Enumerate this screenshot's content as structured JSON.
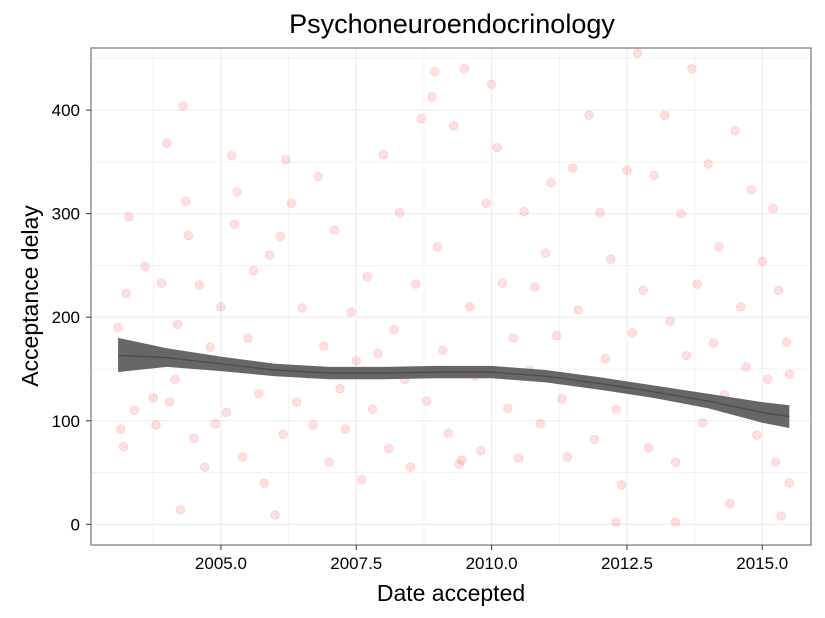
{
  "chart_data": {
    "type": "scatter",
    "title": "Psychoneuroendocrinology",
    "xlabel": "Date accepted",
    "ylabel": "Acceptance delay",
    "xlim": [
      2002.6,
      2015.9
    ],
    "ylim": [
      -20,
      460
    ],
    "x_ticks": [
      2005.0,
      2007.5,
      2010.0,
      2012.5,
      2015.0
    ],
    "x_tick_labels": [
      "2005.0",
      "2007.5",
      "2010.0",
      "2012.5",
      "2015.0"
    ],
    "y_ticks": [
      0,
      100,
      200,
      300,
      400
    ],
    "y_tick_labels": [
      "0",
      "100",
      "200",
      "300",
      "400"
    ],
    "grid": true,
    "point_color": "#ff0000",
    "point_alpha": 0.12,
    "smooth_color": "#5a5a5a",
    "points": [
      [
        2003.1,
        190
      ],
      [
        2003.15,
        92
      ],
      [
        2003.2,
        75
      ],
      [
        2003.25,
        223
      ],
      [
        2003.3,
        297
      ],
      [
        2003.4,
        110
      ],
      [
        2003.5,
        165
      ],
      [
        2003.6,
        249
      ],
      [
        2003.75,
        122
      ],
      [
        2003.8,
        96
      ],
      [
        2003.9,
        233
      ],
      [
        2004.0,
        368
      ],
      [
        2004.05,
        118
      ],
      [
        2004.15,
        140
      ],
      [
        2004.2,
        193
      ],
      [
        2004.25,
        14
      ],
      [
        2004.3,
        404
      ],
      [
        2004.35,
        312
      ],
      [
        2004.4,
        279
      ],
      [
        2004.5,
        83
      ],
      [
        2004.6,
        231
      ],
      [
        2004.7,
        55
      ],
      [
        2004.8,
        171
      ],
      [
        2004.9,
        97
      ],
      [
        2005.0,
        210
      ],
      [
        2005.1,
        108
      ],
      [
        2005.2,
        356
      ],
      [
        2005.25,
        290
      ],
      [
        2005.3,
        321
      ],
      [
        2005.4,
        65
      ],
      [
        2005.5,
        180
      ],
      [
        2005.6,
        245
      ],
      [
        2005.7,
        126
      ],
      [
        2005.8,
        40
      ],
      [
        2005.9,
        260
      ],
      [
        2006.0,
        9
      ],
      [
        2006.1,
        278
      ],
      [
        2006.15,
        87
      ],
      [
        2006.2,
        352
      ],
      [
        2006.3,
        310
      ],
      [
        2006.4,
        118
      ],
      [
        2006.5,
        209
      ],
      [
        2006.6,
        145
      ],
      [
        2006.7,
        96
      ],
      [
        2006.8,
        336
      ],
      [
        2006.9,
        172
      ],
      [
        2007.0,
        60
      ],
      [
        2007.1,
        284
      ],
      [
        2007.2,
        131
      ],
      [
        2007.3,
        92
      ],
      [
        2007.4,
        205
      ],
      [
        2007.5,
        158
      ],
      [
        2007.6,
        43
      ],
      [
        2007.7,
        239
      ],
      [
        2007.8,
        111
      ],
      [
        2007.9,
        165
      ],
      [
        2008.0,
        357
      ],
      [
        2008.1,
        73
      ],
      [
        2008.2,
        188
      ],
      [
        2008.3,
        301
      ],
      [
        2008.4,
        140
      ],
      [
        2008.5,
        55
      ],
      [
        2008.6,
        232
      ],
      [
        2008.7,
        392
      ],
      [
        2008.8,
        119
      ],
      [
        2008.9,
        413
      ],
      [
        2008.95,
        437
      ],
      [
        2009.0,
        268
      ],
      [
        2009.1,
        168
      ],
      [
        2009.2,
        88
      ],
      [
        2009.3,
        385
      ],
      [
        2009.4,
        58
      ],
      [
        2009.45,
        62
      ],
      [
        2009.5,
        440
      ],
      [
        2009.6,
        210
      ],
      [
        2009.7,
        143
      ],
      [
        2009.8,
        71
      ],
      [
        2009.9,
        310
      ],
      [
        2010.0,
        425
      ],
      [
        2010.1,
        364
      ],
      [
        2010.2,
        233
      ],
      [
        2010.3,
        112
      ],
      [
        2010.4,
        180
      ],
      [
        2010.5,
        64
      ],
      [
        2010.6,
        302
      ],
      [
        2010.7,
        149
      ],
      [
        2010.8,
        229
      ],
      [
        2010.9,
        97
      ],
      [
        2011.0,
        262
      ],
      [
        2011.1,
        330
      ],
      [
        2011.2,
        182
      ],
      [
        2011.3,
        121
      ],
      [
        2011.4,
        65
      ],
      [
        2011.5,
        344
      ],
      [
        2011.6,
        207
      ],
      [
        2011.7,
        138
      ],
      [
        2011.8,
        395
      ],
      [
        2011.9,
        82
      ],
      [
        2012.0,
        301
      ],
      [
        2012.1,
        160
      ],
      [
        2012.2,
        256
      ],
      [
        2012.3,
        111
      ],
      [
        2012.4,
        38
      ],
      [
        2012.5,
        342
      ],
      [
        2012.6,
        185
      ],
      [
        2012.7,
        455
      ],
      [
        2012.8,
        226
      ],
      [
        2012.9,
        74
      ],
      [
        2013.0,
        337
      ],
      [
        2013.1,
        128
      ],
      [
        2013.2,
        395
      ],
      [
        2013.3,
        196
      ],
      [
        2013.4,
        60
      ],
      [
        2013.5,
        300
      ],
      [
        2013.6,
        163
      ],
      [
        2013.7,
        440
      ],
      [
        2013.8,
        232
      ],
      [
        2013.9,
        98
      ],
      [
        2014.0,
        348
      ],
      [
        2014.1,
        175
      ],
      [
        2014.2,
        268
      ],
      [
        2014.3,
        125
      ],
      [
        2014.4,
        20
      ],
      [
        2014.5,
        380
      ],
      [
        2014.6,
        210
      ],
      [
        2014.7,
        152
      ],
      [
        2014.8,
        323
      ],
      [
        2014.9,
        86
      ],
      [
        2015.0,
        254
      ],
      [
        2015.1,
        140
      ],
      [
        2015.2,
        305
      ],
      [
        2015.25,
        60
      ],
      [
        2015.3,
        226
      ],
      [
        2015.35,
        8
      ],
      [
        2015.4,
        108
      ],
      [
        2015.45,
        176
      ],
      [
        2015.5,
        145
      ],
      [
        2015.5,
        40
      ],
      [
        2012.3,
        2
      ],
      [
        2013.4,
        2
      ]
    ],
    "smooth_line": [
      {
        "x": 2003.1,
        "y": 163,
        "lower": 147,
        "upper": 180
      },
      {
        "x": 2004.0,
        "y": 161,
        "lower": 152,
        "upper": 170
      },
      {
        "x": 2005.0,
        "y": 155,
        "lower": 148,
        "upper": 162
      },
      {
        "x": 2006.0,
        "y": 149,
        "lower": 143,
        "upper": 155
      },
      {
        "x": 2007.0,
        "y": 146,
        "lower": 140,
        "upper": 152
      },
      {
        "x": 2008.0,
        "y": 146,
        "lower": 140,
        "upper": 152
      },
      {
        "x": 2009.0,
        "y": 147,
        "lower": 141,
        "upper": 153
      },
      {
        "x": 2010.0,
        "y": 147,
        "lower": 141,
        "upper": 153
      },
      {
        "x": 2011.0,
        "y": 143,
        "lower": 137,
        "upper": 149
      },
      {
        "x": 2012.0,
        "y": 136,
        "lower": 130,
        "upper": 142
      },
      {
        "x": 2013.0,
        "y": 128,
        "lower": 122,
        "upper": 134
      },
      {
        "x": 2014.0,
        "y": 119,
        "lower": 112,
        "upper": 126
      },
      {
        "x": 2015.0,
        "y": 108,
        "lower": 98,
        "upper": 118
      },
      {
        "x": 2015.5,
        "y": 104,
        "lower": 93,
        "upper": 115
      }
    ]
  }
}
